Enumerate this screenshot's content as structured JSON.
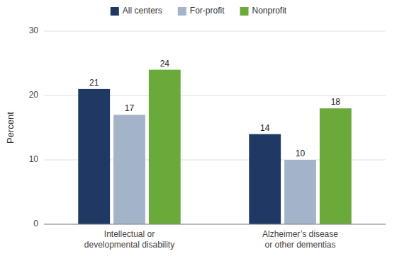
{
  "chart_data": {
    "type": "bar",
    "categories": [
      "Intellectual or\ndevelopmental disability",
      "Alzheimer’s disease\nor other dementias"
    ],
    "series": [
      {
        "name": "All centers",
        "color": "#1f3864",
        "values": [
          21,
          14
        ]
      },
      {
        "name": "For-profit",
        "color": "#a4b4c8",
        "values": [
          17,
          10
        ]
      },
      {
        "name": "Nonprofit",
        "color": "#6aaa3a",
        "values": [
          24,
          18
        ]
      }
    ],
    "ylabel": "Percent",
    "ylim": [
      0,
      30
    ],
    "yticks": [
      0,
      10,
      20,
      30
    ],
    "grid": true,
    "legend": "top",
    "data_labels": true
  }
}
